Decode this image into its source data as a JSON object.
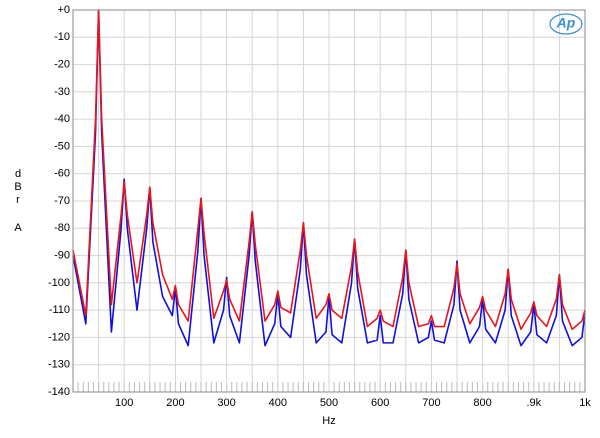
{
  "chart_data": {
    "type": "line",
    "logo": "Ap",
    "xlabel": "Hz",
    "ylabel": [
      "d",
      "B",
      "r",
      "A"
    ],
    "xlim": [
      0,
      1000
    ],
    "ylim": [
      -140,
      0
    ],
    "xticks": [
      100,
      200,
      300,
      400,
      500,
      600,
      700,
      800,
      {
        "value": 900,
        "label": ".9k"
      },
      {
        "value": 1000,
        "label": "1k"
      }
    ],
    "yticks": [
      {
        "value": 0,
        "label": "+0"
      },
      -10,
      -20,
      -30,
      -40,
      -50,
      -60,
      -70,
      -80,
      -90,
      -100,
      -110,
      -120,
      -130,
      -140
    ],
    "grid": true,
    "x": [
      0,
      25,
      44,
      50,
      56,
      75,
      94,
      100,
      106,
      125,
      144,
      150,
      156,
      175,
      194,
      200,
      206,
      225,
      244,
      250,
      256,
      275,
      294,
      300,
      306,
      325,
      344,
      350,
      356,
      375,
      394,
      400,
      406,
      425,
      444,
      450,
      456,
      475,
      494,
      500,
      506,
      525,
      544,
      550,
      556,
      575,
      594,
      600,
      606,
      625,
      644,
      650,
      656,
      675,
      694,
      700,
      706,
      725,
      744,
      750,
      756,
      775,
      794,
      800,
      806,
      825,
      844,
      850,
      856,
      875,
      894,
      900,
      906,
      925,
      944,
      950,
      956,
      975,
      994,
      1000
    ],
    "series": [
      {
        "color": "#1010dd",
        "values": [
          -90,
          -115,
          -45,
          0,
          -45,
          -118,
          -80,
          -62,
          -80,
          -110,
          -80,
          -65,
          -85,
          -105,
          -112,
          -102,
          -115,
          -123,
          -88,
          -69,
          -90,
          -122,
          -110,
          -98,
          -112,
          -122,
          -90,
          -74,
          -92,
          -123,
          -115,
          -104,
          -116,
          -120,
          -95,
          -78,
          -97,
          -122,
          -118,
          -105,
          -119,
          -122,
          -100,
          -84,
          -102,
          -122,
          -121,
          -112,
          -122,
          -122,
          -104,
          -88,
          -106,
          -122,
          -120,
          -114,
          -121,
          -122,
          -108,
          -92,
          -110,
          -122,
          -116,
          -106,
          -117,
          -122,
          -110,
          -95,
          -112,
          -123,
          -118,
          -108,
          -119,
          -122,
          -112,
          -97,
          -114,
          -123,
          -120,
          -111
        ]
      },
      {
        "color": "#e8151b",
        "values": [
          -88,
          -112,
          -40,
          0,
          -40,
          -108,
          -75,
          -63,
          -75,
          -100,
          -75,
          -65,
          -78,
          -97,
          -106,
          -101,
          -108,
          -114,
          -80,
          -69,
          -82,
          -113,
          -103,
          -99,
          -106,
          -114,
          -85,
          -74,
          -86,
          -114,
          -108,
          -103,
          -109,
          -111,
          -88,
          -78,
          -90,
          -113,
          -108,
          -104,
          -110,
          -113,
          -94,
          -84,
          -96,
          -116,
          -113,
          -110,
          -114,
          -116,
          -98,
          -88,
          -100,
          -116,
          -115,
          -112,
          -116,
          -116,
          -102,
          -93,
          -104,
          -115,
          -109,
          -105,
          -110,
          -116,
          -104,
          -95,
          -106,
          -117,
          -111,
          -107,
          -112,
          -116,
          -106,
          -97,
          -108,
          -117,
          -114,
          -110
        ]
      }
    ]
  }
}
